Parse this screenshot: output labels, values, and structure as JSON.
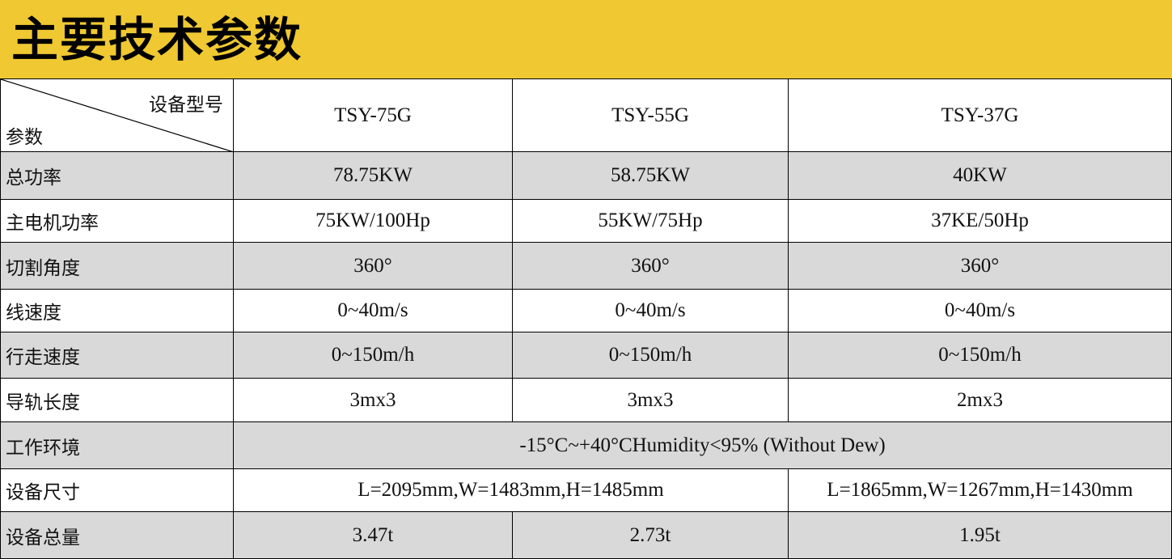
{
  "title": "主要技术参数",
  "header": {
    "corner_model": "设备型号",
    "corner_param": "参数",
    "models": [
      "TSY-75G",
      "TSY-55G",
      "TSY-37G"
    ]
  },
  "rows": [
    {
      "label": "总功率",
      "values": [
        "78.75KW",
        "58.75KW",
        "40KW"
      ]
    },
    {
      "label": "主电机功率",
      "values": [
        "75KW/100Hp",
        "55KW/75Hp",
        "37KE/50Hp"
      ]
    },
    {
      "label": "切割角度",
      "values": [
        "360°",
        "360°",
        "360°"
      ]
    },
    {
      "label": "线速度",
      "values": [
        "0~40m/s",
        "0~40m/s",
        "0~40m/s"
      ]
    },
    {
      "label": "行走速度",
      "values": [
        "0~150m/h",
        "0~150m/h",
        "0~150m/h"
      ]
    },
    {
      "label": "导轨长度",
      "values": [
        "3mx3",
        "3mx3",
        "2mx3"
      ]
    },
    {
      "label": "工作环境",
      "values": [
        "-15°C~+40°CHumidity<95% (Without Dew)"
      ]
    },
    {
      "label": "设备尺寸",
      "values": [
        "L=2095mm,W=1483mm,H=1485mm",
        "L=1865mm,W=1267mm,H=1430mm"
      ]
    },
    {
      "label": "设备总量",
      "values": [
        "3.47t",
        "2.73t",
        "1.95t"
      ]
    }
  ],
  "colors": {
    "title_bar": "#EFC832",
    "gray_row": "#D9D9D9"
  }
}
